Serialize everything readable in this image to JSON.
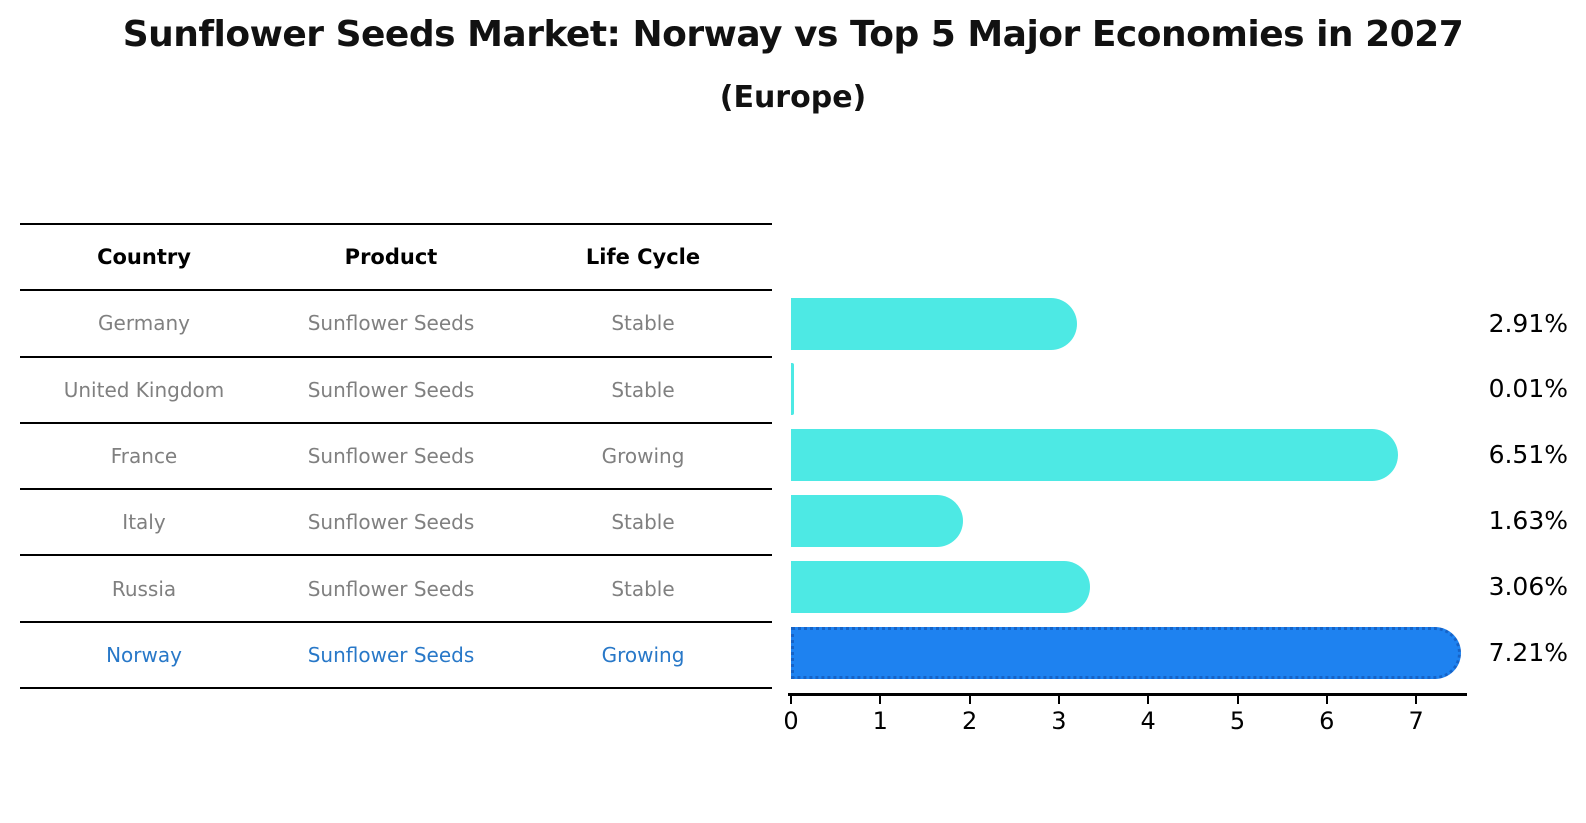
{
  "title": {
    "text": "Sunflower Seeds Market: Norway vs Top 5 Major Economies in 2027",
    "subtitle": "(Europe)"
  },
  "table": {
    "headers": [
      "Country",
      "Product",
      "Life Cycle"
    ],
    "rows": [
      {
        "country": "Germany",
        "product": "Sunflower Seeds",
        "life_cycle": "Stable",
        "highlight": false
      },
      {
        "country": "United Kingdom",
        "product": "Sunflower Seeds",
        "life_cycle": "Stable",
        "highlight": false
      },
      {
        "country": "France",
        "product": "Sunflower Seeds",
        "life_cycle": "Growing",
        "highlight": false
      },
      {
        "country": "Italy",
        "product": "Sunflower Seeds",
        "life_cycle": "Stable",
        "highlight": false
      },
      {
        "country": "Russia",
        "product": "Sunflower Seeds",
        "life_cycle": "Stable",
        "highlight": false
      },
      {
        "country": "Norway",
        "product": "Sunflower Seeds",
        "life_cycle": "Growing",
        "highlight": true
      }
    ]
  },
  "chart_data": {
    "type": "bar",
    "orientation": "horizontal",
    "title": "Sunflower Seeds Market: Norway vs Top 5 Major Economies in 2027 (Europe)",
    "categories": [
      "Germany",
      "United Kingdom",
      "France",
      "Italy",
      "Russia",
      "Norway"
    ],
    "values": [
      2.91,
      0.01,
      6.51,
      1.63,
      3.06,
      7.21
    ],
    "labels": [
      "2.91%",
      "0.01%",
      "6.51%",
      "1.63%",
      "3.06%",
      "7.21%"
    ],
    "unit": "%",
    "xlabel": "",
    "ylabel": "",
    "xlim": [
      0,
      7.6
    ],
    "xticks": [
      0,
      1,
      2,
      3,
      4,
      5,
      6,
      7
    ],
    "xtick_labels": [
      "0",
      "1",
      "2",
      "3",
      "4",
      "5",
      "6",
      "7"
    ],
    "grid": false,
    "legend": "none",
    "highlight_category": "Norway",
    "highlight_index": 5,
    "colors": {
      "bar": "#4DE9E4",
      "highlight_bar": "#1E82F0",
      "highlight_border": "#1663C7",
      "highlight_text": "#2878C8",
      "row_text": "#808080",
      "header_text": "#000000",
      "value_label": "#000000",
      "axis": "#000000"
    }
  }
}
